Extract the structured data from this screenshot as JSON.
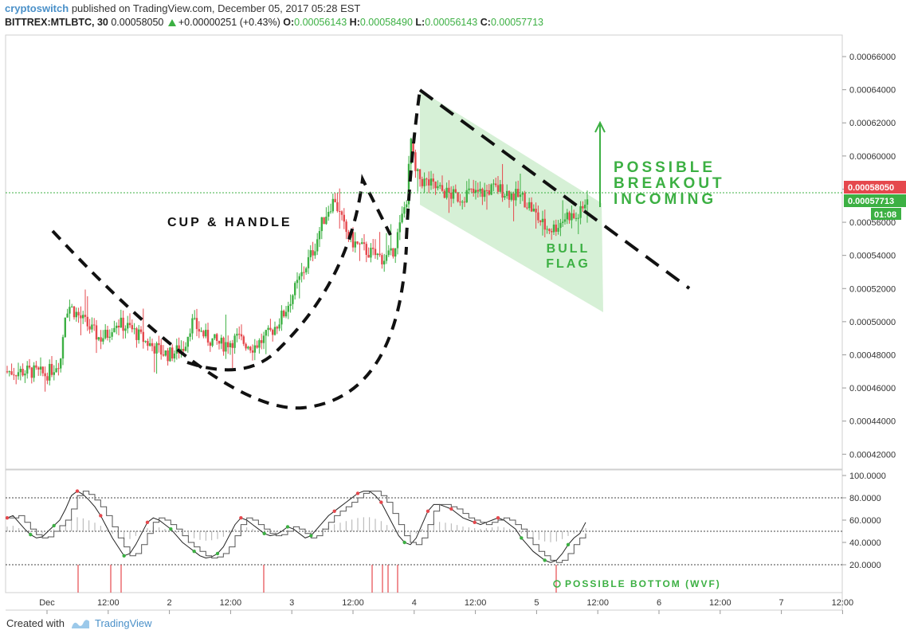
{
  "header": {
    "author": "cryptoswitch",
    "published": "published on TradingView.com, December 05, 2017 05:28 EST",
    "symbol": "BITTREX:MTLBTC, 30",
    "last": "0.00058050",
    "change": "+0.00000251 (+0.43%)",
    "open_label": "O:",
    "open": "0.00056143",
    "high_label": "H:",
    "high": "0.00058490",
    "low_label": "L:",
    "low": "0.00056143",
    "close_label": "C:",
    "close": "0.00057713"
  },
  "colors": {
    "up": "#3cb043",
    "down": "#e5484d",
    "annotation_green": "#3cb043",
    "flag_fill": "#c8ebc8",
    "price_badge_red": "#e5484d",
    "price_badge_green": "#3cb043",
    "grid": "#e0e0e0"
  },
  "chart_data": [
    {
      "type": "candlestick",
      "title": "",
      "y_axis_ticks": [
        "0.00066000",
        "0.00064000",
        "0.00062000",
        "0.00060000",
        "0.00058000",
        "0.00056000",
        "0.00054000",
        "0.00052000",
        "0.00050000",
        "0.00048000",
        "0.00046000",
        "0.00044000",
        "0.00042000"
      ],
      "ylim": [
        0.000411,
        0.000673
      ],
      "x_axis_ticks": [
        "Dec",
        "12:00",
        "2",
        "12:00",
        "3",
        "12:00",
        "4",
        "12:00",
        "5",
        "12:00",
        "6",
        "12:00",
        "7",
        "12:00"
      ],
      "price_badges": {
        "last": "0.00058050",
        "close": "0.00057713",
        "countdown": "01:08"
      },
      "price_path": [
        [
          0,
          0.00047
        ],
        [
          3,
          0.00047
        ],
        [
          5,
          0.000468
        ],
        [
          6,
          0.000472
        ],
        [
          7,
          0.000478
        ],
        [
          7.5,
          0.000505
        ],
        [
          8,
          0.00051
        ],
        [
          9,
          0.000505
        ],
        [
          10,
          0.0005
        ],
        [
          11,
          0.000495
        ],
        [
          12,
          0.00049
        ],
        [
          13,
          0.000492
        ],
        [
          14,
          0.0005
        ],
        [
          15,
          0.000498
        ],
        [
          16,
          0.000496
        ],
        [
          17,
          0.000492
        ],
        [
          18,
          0.000488
        ],
        [
          19,
          0.000485
        ],
        [
          20,
          0.000482
        ],
        [
          21,
          0.00048
        ],
        [
          22,
          0.000482
        ],
        [
          23,
          0.000485
        ],
        [
          24,
          0.0005
        ],
        [
          25,
          0.000495
        ],
        [
          26,
          0.00049
        ],
        [
          27,
          0.000488
        ],
        [
          28,
          0.000486
        ],
        [
          29,
          0.000488
        ],
        [
          30,
          0.00049
        ],
        [
          31,
          0.000487
        ],
        [
          32,
          0.000485
        ],
        [
          33,
          0.000488
        ],
        [
          34,
          0.000492
        ],
        [
          35,
          0.000498
        ],
        [
          36,
          0.000505
        ],
        [
          37,
          0.000515
        ],
        [
          38,
          0.000525
        ],
        [
          39,
          0.000535
        ],
        [
          40,
          0.000545
        ],
        [
          41,
          0.00056
        ],
        [
          42,
          0.00057
        ],
        [
          42.8,
          0.000575
        ],
        [
          43,
          0.000568
        ],
        [
          44,
          0.000555
        ],
        [
          45,
          0.000548
        ],
        [
          46,
          0.000545
        ],
        [
          47,
          0.000542
        ],
        [
          48,
          0.00054
        ],
        [
          49,
          0.000538
        ],
        [
          50,
          0.00054
        ],
        [
          51,
          0.000555
        ],
        [
          52,
          0.000575
        ],
        [
          52.6,
          0.000612
        ],
        [
          53,
          0.00059
        ],
        [
          54,
          0.000585
        ],
        [
          55,
          0.000583
        ],
        [
          56,
          0.00058
        ],
        [
          57,
          0.000578
        ],
        [
          58,
          0.000576
        ],
        [
          59,
          0.000575
        ],
        [
          60,
          0.000578
        ],
        [
          61,
          0.000577
        ],
        [
          62,
          0.000578
        ],
        [
          63,
          0.00058
        ],
        [
          64,
          0.00058
        ],
        [
          65,
          0.000578
        ],
        [
          66,
          0.000576
        ],
        [
          67,
          0.000575
        ],
        [
          68,
          0.00057
        ],
        [
          69,
          0.000563
        ],
        [
          70,
          0.000557
        ],
        [
          71,
          0.000556
        ],
        [
          72,
          0.00056
        ],
        [
          73,
          0.000565
        ],
        [
          74,
          0.000562
        ],
        [
          75,
          0.000568
        ],
        [
          75.5,
          0.000577
        ]
      ],
      "annotations": [
        {
          "label": "CUP & HANDLE"
        },
        {
          "label": "BULL FLAG",
          "lines": [
            "BULL",
            "FLAG"
          ]
        },
        {
          "label": "POSSIBLE BREAKOUT INCOMING",
          "lines": [
            "POSSIBLE",
            "BREAKOUT",
            "INCOMING"
          ]
        }
      ]
    },
    {
      "type": "line",
      "title": "",
      "y_axis_ticks": [
        "100.0000",
        "80.0000",
        "60.0000",
        "40.0000",
        "20.0000"
      ],
      "ylim": [
        0,
        100
      ],
      "reference_lines": [
        80,
        50,
        20
      ],
      "series": [
        {
          "values": [
            62,
            64,
            58,
            52,
            47,
            44,
            45,
            50,
            55,
            60,
            70,
            82,
            86,
            83,
            78,
            72,
            64,
            54,
            44,
            36,
            28,
            30,
            38,
            48,
            58,
            62,
            60,
            56,
            52,
            46,
            40,
            36,
            32,
            28,
            26,
            27,
            30,
            36,
            46,
            56,
            62,
            60,
            56,
            52,
            48,
            46,
            47,
            50,
            54,
            52,
            48,
            44,
            46,
            52,
            58,
            64,
            68,
            72,
            76,
            80,
            84,
            86,
            86,
            82,
            76,
            66,
            56,
            46,
            40,
            38,
            44,
            56,
            68,
            74,
            74,
            72,
            70,
            66,
            62,
            60,
            58,
            56,
            58,
            60,
            62,
            60,
            56,
            52,
            44,
            38,
            32,
            28,
            24,
            22,
            24,
            30,
            38,
            44,
            48,
            58
          ]
        }
      ],
      "annotations": [
        {
          "label": "POSSIBLE BOTTOM (WVF)"
        }
      ]
    }
  ],
  "footer": {
    "created_with": "Created with",
    "brand": "TradingView"
  }
}
